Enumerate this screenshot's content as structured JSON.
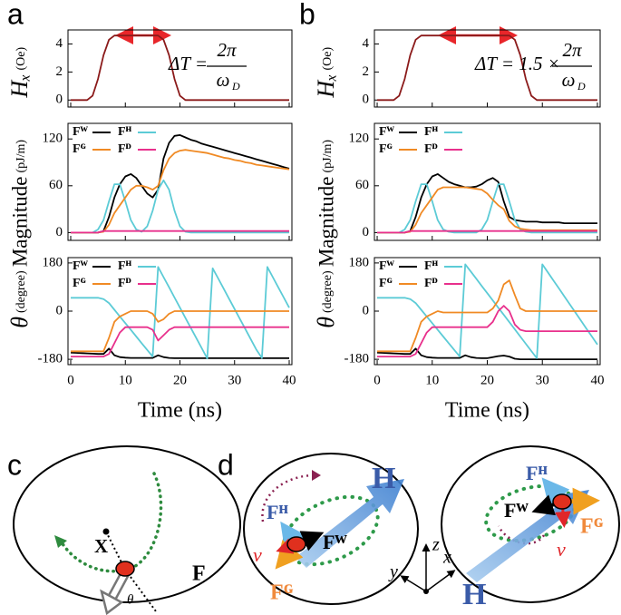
{
  "panel_labels": {
    "a": "a",
    "b": "b",
    "c": "c",
    "d": "d"
  },
  "chart_data": [
    {
      "type": "line",
      "ylabel": "Hₓ",
      "yunit": "(Oe)",
      "x": [
        0,
        1,
        2,
        3,
        4,
        5,
        6,
        7,
        8,
        9,
        10,
        11,
        12,
        13,
        14,
        15,
        16,
        17,
        18,
        19,
        20,
        21,
        22,
        23,
        24,
        25,
        26,
        27,
        28,
        29,
        30,
        31,
        32,
        33,
        34,
        35,
        36,
        37,
        38,
        39,
        40
      ],
      "values": [
        0,
        0,
        0,
        0,
        0.3,
        1.5,
        3.2,
        4.3,
        4.6,
        4.6,
        4.6,
        4.6,
        4.6,
        4.6,
        4.6,
        4.6,
        4.6,
        4.3,
        3.2,
        1.5,
        0.3,
        0,
        0,
        0,
        0,
        0,
        0,
        0,
        0,
        0,
        0,
        0,
        0,
        0,
        0,
        0,
        0,
        0,
        0,
        0,
        0
      ],
      "color": "#8b1a1a",
      "xlim": [
        -0.5,
        40.5
      ],
      "xticks": [
        0,
        10,
        20,
        30,
        40
      ],
      "ylim": [
        -0.5,
        5
      ],
      "yticks": [
        0,
        2,
        4
      ],
      "annotation": {
        "lhs": "ΔT =",
        "numerator": "2π",
        "denominator": "ω",
        "denominator_sub": "D"
      }
    },
    {
      "type": "line",
      "ylabel": "Magnitude",
      "yunit": "(pJ/m)",
      "legend": "upper left",
      "x": [
        0,
        1,
        2,
        3,
        4,
        5,
        6,
        7,
        8,
        9,
        10,
        11,
        12,
        13,
        14,
        15,
        16,
        17,
        18,
        19,
        20,
        21,
        22,
        23,
        24,
        25,
        26,
        27,
        28,
        29,
        30,
        31,
        32,
        33,
        34,
        35,
        36,
        37,
        38,
        39,
        40
      ],
      "series": [
        {
          "name": "Fᵂ",
          "color": "#000000",
          "values": [
            0,
            0,
            0,
            0,
            0,
            0,
            2,
            20,
            45,
            62,
            72,
            75,
            70,
            60,
            50,
            45,
            55,
            95,
            115,
            124,
            125,
            122,
            119,
            117,
            114,
            112,
            110,
            108,
            106,
            104,
            102,
            100,
            98,
            96,
            94,
            92,
            90,
            88,
            86,
            84,
            82
          ]
        },
        {
          "name": "Fᴴ",
          "color": "#5ccbd6",
          "values": [
            0,
            0,
            0,
            0,
            0,
            4,
            16,
            40,
            62,
            62,
            40,
            16,
            4,
            1,
            8,
            28,
            55,
            67,
            55,
            28,
            8,
            1,
            0,
            0,
            0,
            0,
            0,
            0,
            0,
            0,
            0,
            0,
            0,
            0,
            0,
            0,
            0,
            0,
            0,
            0,
            0
          ]
        },
        {
          "name": "Fᴳ",
          "color": "#f08a24",
          "values": [
            0,
            0,
            0,
            0,
            0,
            0,
            1,
            10,
            25,
            35,
            45,
            55,
            60,
            60,
            58,
            55,
            60,
            80,
            95,
            102,
            105,
            106,
            105,
            104,
            103,
            102,
            100,
            98,
            96,
            95,
            93,
            92,
            90,
            89,
            87,
            86,
            85,
            84,
            83,
            82,
            81
          ]
        },
        {
          "name": "Fᴰ",
          "color": "#e8308c",
          "values": [
            0,
            0,
            0,
            0,
            0,
            0,
            2,
            2,
            2,
            2,
            2,
            2,
            2,
            2,
            2,
            2,
            2,
            2,
            2,
            2,
            2,
            2,
            2,
            2,
            2,
            2,
            2,
            2,
            2,
            2,
            2,
            2,
            2,
            2,
            2,
            2,
            2,
            2,
            2,
            2,
            2
          ]
        }
      ],
      "xlim": [
        -0.5,
        40.5
      ],
      "xticks": [
        0,
        10,
        20,
        30,
        40
      ],
      "ylim": [
        -10,
        140
      ],
      "yticks": [
        0,
        60,
        120
      ]
    },
    {
      "type": "line",
      "ylabel": "θ",
      "yunit": "(degree)",
      "xlabel": "Time (ns)",
      "legend": "upper left",
      "x": [
        0,
        1,
        2,
        3,
        4,
        5,
        6,
        7,
        8,
        9,
        10,
        11,
        12,
        13,
        14,
        15,
        16,
        17,
        18,
        19,
        20,
        21,
        22,
        23,
        24,
        25,
        26,
        27,
        28,
        29,
        30,
        31,
        32,
        33,
        34,
        35,
        36,
        37,
        38,
        39,
        40
      ],
      "series": [
        {
          "name": "Fᵂ",
          "color": "#000000",
          "values": [
            -155,
            -156,
            -157,
            -158,
            -159,
            -160,
            -160,
            -140,
            -165,
            -172,
            -174,
            -175,
            -175,
            -175,
            -175,
            -175,
            -165,
            -172,
            -175,
            -176,
            -176,
            -176,
            -176,
            -176,
            -176,
            -176,
            -176,
            -176,
            -176,
            -176,
            -176,
            -176,
            -176,
            -176,
            -176,
            -176,
            -176,
            -176,
            -176,
            -176,
            -176
          ]
        },
        {
          "name": "Fᴴ",
          "color": "#5ccbd6",
          "values": [
            50,
            50,
            50,
            50,
            50,
            50,
            45,
            30,
            5,
            -20,
            -45,
            -70,
            -95,
            -120,
            -145,
            -170,
            165,
            127,
            89,
            51,
            13,
            -25,
            -63,
            -101,
            -139,
            -177,
            160,
            122,
            84,
            46,
            8,
            -30,
            -68,
            -106,
            -144,
            -175,
            165,
            127,
            89,
            51,
            13
          ]
        },
        {
          "name": "Fᴳ",
          "color": "#f08a24",
          "values": [
            -150,
            -150,
            -150,
            -150,
            -150,
            -150,
            -150,
            -100,
            -40,
            -20,
            -10,
            0,
            0,
            0,
            0,
            -10,
            -40,
            -30,
            -10,
            0,
            0,
            0,
            0,
            0,
            0,
            0,
            0,
            0,
            0,
            0,
            0,
            0,
            0,
            0,
            0,
            0,
            0,
            0,
            0,
            0,
            0
          ]
        },
        {
          "name": "Fᴰ",
          "color": "#e8308c",
          "values": [
            -170,
            -170,
            -170,
            -170,
            -170,
            -170,
            -170,
            -160,
            -120,
            -80,
            -60,
            -60,
            -60,
            -60,
            -60,
            -70,
            -110,
            -90,
            -70,
            -60,
            -60,
            -60,
            -60,
            -60,
            -60,
            -60,
            -60,
            -60,
            -60,
            -60,
            -60,
            -60,
            -60,
            -60,
            -60,
            -60,
            -60,
            -60,
            -60,
            -60,
            -60
          ]
        }
      ],
      "xlim": [
        -0.5,
        40.5
      ],
      "xticks": [
        0,
        10,
        20,
        30,
        40
      ],
      "ylim": [
        -200,
        200
      ],
      "yticks": [
        -180,
        0,
        180
      ]
    },
    {
      "type": "line",
      "ylabel": "Hₓ",
      "yunit": "(Oe)",
      "x": [
        0,
        1,
        2,
        3,
        4,
        5,
        6,
        7,
        8,
        9,
        10,
        11,
        12,
        13,
        14,
        15,
        16,
        17,
        18,
        19,
        20,
        21,
        22,
        23,
        24,
        25,
        26,
        27,
        28,
        29,
        30,
        31,
        32,
        33,
        34,
        35,
        36,
        37,
        38,
        39,
        40
      ],
      "values": [
        0,
        0,
        0,
        0,
        0.3,
        1.5,
        3.2,
        4.3,
        4.6,
        4.6,
        4.6,
        4.6,
        4.6,
        4.6,
        4.6,
        4.6,
        4.6,
        4.6,
        4.6,
        4.6,
        4.6,
        4.6,
        4.6,
        4.6,
        4.6,
        4.3,
        3.2,
        1.5,
        0.3,
        0,
        0,
        0,
        0,
        0,
        0,
        0,
        0,
        0,
        0,
        0,
        0
      ],
      "color": "#8b1a1a",
      "xlim": [
        -0.5,
        40.5
      ],
      "xticks": [
        0,
        10,
        20,
        30,
        40
      ],
      "ylim": [
        -0.5,
        5
      ],
      "yticks": [
        0,
        2,
        4
      ],
      "annotation": {
        "lhs": "ΔT = 1.5 ×",
        "numerator": "2π",
        "denominator": "ω",
        "denominator_sub": "D"
      }
    },
    {
      "type": "line",
      "ylabel": "Magnitude",
      "yunit": "(pJ/m)",
      "legend": "upper left",
      "x": [
        0,
        1,
        2,
        3,
        4,
        5,
        6,
        7,
        8,
        9,
        10,
        11,
        12,
        13,
        14,
        15,
        16,
        17,
        18,
        19,
        20,
        21,
        22,
        23,
        24,
        25,
        26,
        27,
        28,
        29,
        30,
        31,
        32,
        33,
        34,
        35,
        36,
        37,
        38,
        39,
        40
      ],
      "series": [
        {
          "name": "Fᵂ",
          "color": "#000000",
          "values": [
            0,
            0,
            0,
            0,
            0,
            0,
            2,
            20,
            45,
            62,
            72,
            75,
            70,
            65,
            62,
            60,
            58,
            58,
            59,
            62,
            67,
            70,
            65,
            40,
            20,
            16,
            15,
            14,
            14,
            14,
            13,
            13,
            13,
            13,
            12,
            12,
            12,
            12,
            12,
            12,
            12
          ]
        },
        {
          "name": "Fᴴ",
          "color": "#5ccbd6",
          "values": [
            0,
            0,
            0,
            0,
            0,
            4,
            16,
            40,
            62,
            62,
            40,
            16,
            4,
            1,
            0,
            0,
            0,
            0,
            0,
            4,
            16,
            40,
            62,
            62,
            40,
            16,
            4,
            1,
            0,
            0,
            0,
            0,
            0,
            0,
            0,
            0,
            0,
            0,
            0,
            0,
            0
          ]
        },
        {
          "name": "Fᴳ",
          "color": "#f08a24",
          "values": [
            0,
            0,
            0,
            0,
            0,
            0,
            1,
            10,
            25,
            35,
            45,
            55,
            58,
            58,
            58,
            58,
            58,
            57,
            56,
            55,
            50,
            42,
            35,
            30,
            15,
            8,
            5,
            4,
            3,
            3,
            3,
            3,
            3,
            3,
            3,
            3,
            3,
            3,
            3,
            3,
            3
          ]
        },
        {
          "name": "Fᴰ",
          "color": "#e8308c",
          "values": [
            0,
            0,
            0,
            0,
            0,
            0,
            2,
            2,
            2,
            2,
            2,
            2,
            2,
            2,
            2,
            2,
            2,
            2,
            2,
            2,
            2,
            2,
            2,
            2,
            2,
            2,
            2,
            2,
            2,
            2,
            2,
            2,
            2,
            2,
            2,
            2,
            2,
            2,
            2,
            2,
            2
          ]
        }
      ],
      "xlim": [
        -0.5,
        40.5
      ],
      "xticks": [
        0,
        10,
        20,
        30,
        40
      ],
      "ylim": [
        -10,
        140
      ],
      "yticks": [
        0,
        60,
        120
      ]
    },
    {
      "type": "line",
      "ylabel": "θ",
      "yunit": "(degree)",
      "xlabel": "Time (ns)",
      "legend": "upper left",
      "x": [
        0,
        1,
        2,
        3,
        4,
        5,
        6,
        7,
        8,
        9,
        10,
        11,
        12,
        13,
        14,
        15,
        16,
        17,
        18,
        19,
        20,
        21,
        22,
        23,
        24,
        25,
        26,
        27,
        28,
        29,
        30,
        31,
        32,
        33,
        34,
        35,
        36,
        37,
        38,
        39,
        40
      ],
      "series": [
        {
          "name": "Fᵂ",
          "color": "#000000",
          "values": [
            -155,
            -156,
            -157,
            -158,
            -159,
            -160,
            -160,
            -140,
            -165,
            -172,
            -174,
            -175,
            -175,
            -175,
            -175,
            -175,
            -165,
            -172,
            -175,
            -176,
            -176,
            -172,
            -168,
            -166,
            -170,
            -178,
            -180,
            -180,
            -180,
            -180,
            -180,
            -180,
            -180,
            -180,
            -180,
            -180,
            -180,
            -180,
            -180,
            -180,
            -180
          ]
        },
        {
          "name": "Fᴴ",
          "color": "#5ccbd6",
          "values": [
            50,
            50,
            50,
            50,
            50,
            50,
            45,
            30,
            5,
            -20,
            -45,
            -70,
            -95,
            -120,
            -145,
            -170,
            175,
            148,
            121,
            94,
            67,
            40,
            13,
            -14,
            -41,
            -68,
            -95,
            -122,
            -149,
            -176,
            175,
            145,
            115,
            85,
            55,
            25,
            -5,
            -35,
            -65,
            -95,
            -125
          ]
        },
        {
          "name": "Fᴳ",
          "color": "#f08a24",
          "values": [
            -150,
            -150,
            -150,
            -150,
            -150,
            -150,
            -150,
            -100,
            -40,
            -20,
            -10,
            0,
            -5,
            -5,
            -5,
            -5,
            -5,
            -5,
            -5,
            -5,
            -5,
            10,
            40,
            100,
            115,
            60,
            10,
            0,
            0,
            0,
            0,
            0,
            0,
            0,
            0,
            0,
            0,
            0,
            0,
            0,
            0
          ]
        },
        {
          "name": "Fᴰ",
          "color": "#e8308c",
          "values": [
            -170,
            -170,
            -170,
            -170,
            -170,
            -170,
            -170,
            -160,
            -120,
            -80,
            -60,
            -60,
            -60,
            -60,
            -60,
            -60,
            -60,
            -60,
            -60,
            -60,
            -60,
            -40,
            0,
            20,
            0,
            -50,
            -70,
            -75,
            -75,
            -75,
            -75,
            -75,
            -75,
            -75,
            -75,
            -75,
            -75,
            -75,
            -75,
            -75,
            -75
          ]
        }
      ],
      "xlim": [
        -0.5,
        40.5
      ],
      "xticks": [
        0,
        10,
        20,
        30,
        40
      ],
      "ylim": [
        -200,
        200
      ],
      "yticks": [
        -180,
        0,
        180
      ]
    }
  ],
  "diagrams": {
    "c": {
      "X": "X",
      "F": "F",
      "theta": "θ"
    },
    "d": {
      "left": {
        "H": "H",
        "FH": "Fᴴ",
        "FW": "Fᵂ",
        "FG": "Fᴳ",
        "v": "v"
      },
      "right": {
        "H": "H",
        "FH": "Fᴴ",
        "FW": "Fᵂ",
        "FG": "Fᴳ",
        "v": "v"
      },
      "axes": {
        "x": "x",
        "y": "y",
        "z": "z"
      }
    }
  }
}
